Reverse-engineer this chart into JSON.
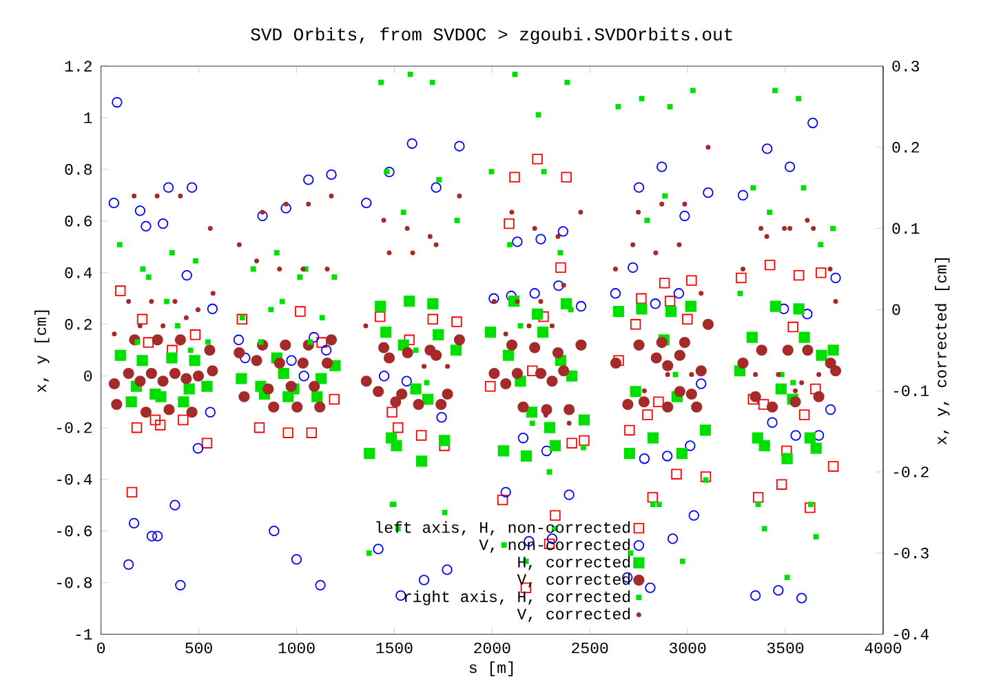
{
  "chart_data": {
    "type": "scatter",
    "title": "SVD Orbits, from SVDOC > zgoubi.SVDOrbits.out",
    "xlabel": "s [m]",
    "ylabel": "x, y [cm]",
    "y2label": "x, y, corrected [cm]",
    "xlim": [
      0,
      4000
    ],
    "xticks": [
      0,
      500,
      1000,
      1500,
      2000,
      2500,
      3000,
      3500,
      4000
    ],
    "ylim": [
      -1,
      1.2
    ],
    "yticks": [
      -1,
      -0.8,
      -0.6,
      -0.4,
      -0.2,
      0,
      0.2,
      0.4,
      0.6,
      0.8,
      1,
      1.2
    ],
    "y2lim": [
      -0.4,
      0.3
    ],
    "y2ticks": [
      -0.4,
      -0.3,
      -0.2,
      -0.1,
      0,
      0.1,
      0.2,
      0.3
    ],
    "grid": false,
    "legend": "bottom",
    "series": [
      {
        "name": "left axis, H, non-corrected",
        "color": "#ff0000",
        "marker": "square",
        "x": [
          99,
          211,
          482,
          721,
          1019,
          1427,
          242,
          364,
          1129,
          2232,
          2115,
          2380,
          2087,
          2351,
          2882,
          3020,
          2763,
          2910,
          2999,
          2734,
          1697,
          1819,
          1577,
          2263,
          3421,
          3274,
          3569,
          3682,
          3539,
          158,
          183,
          277,
          303,
          420,
          542,
          810,
          957,
          1077,
          1193,
          1488,
          1638,
          1756,
          1519,
          2054,
          2323,
          2293,
          2173,
          2408,
          2471,
          2703,
          2795,
          2851,
          2943,
          2821,
          1991,
          2206,
          2647,
          3335,
          3389,
          3654,
          3597,
          3506,
          3745,
          3093,
          3481,
          3361,
          3626
        ],
        "values": [
          0.33,
          0.22,
          0.16,
          0.22,
          0.25,
          0.23,
          0.13,
          0.1,
          0.13,
          0.84,
          0.77,
          0.77,
          0.59,
          0.42,
          0.36,
          0.37,
          0.3,
          0.29,
          0.22,
          0.2,
          0.22,
          0.21,
          0.14,
          0.23,
          0.43,
          0.38,
          0.39,
          0.4,
          0.19,
          -0.45,
          -0.2,
          -0.17,
          -0.19,
          -0.17,
          -0.26,
          -0.2,
          -0.22,
          -0.22,
          -0.09,
          -0.14,
          -0.23,
          -0.27,
          -0.2,
          -0.48,
          -0.54,
          -0.65,
          -0.82,
          -0.26,
          -0.25,
          -0.21,
          -0.15,
          -0.1,
          -0.38,
          -0.47,
          -0.04,
          0.02,
          0.06,
          -0.09,
          -0.11,
          -0.05,
          -0.15,
          -0.29,
          -0.35,
          -0.39,
          -0.42,
          -0.47,
          -0.51
        ]
      },
      {
        "name": "V, non-corrected",
        "color": "#0000ff",
        "marker": "circle",
        "x": [
          82,
          66,
          200,
          230,
          317,
          345,
          465,
          439,
          570,
          704,
          826,
          946,
          1061,
          1178,
          1357,
          1474,
          1089,
          1591,
          1833,
          1714,
          2868,
          2751,
          2985,
          2363,
          2129,
          2249,
          2340,
          2720,
          2631,
          2218,
          2098,
          2009,
          2455,
          2955,
          2835,
          3640,
          3407,
          3523,
          3105,
          3283,
          3757,
          3492,
          3612,
          559,
          496,
          378,
          169,
          260,
          289,
          141,
          406,
          885,
          1000,
          1122,
          1418,
          1448,
          1038,
          1152,
          737,
          974,
          1563,
          1742,
          2070,
          2394,
          2159,
          2279,
          2779,
          2896,
          3013,
          1770,
          1652,
          1533,
          2307,
          2189,
          2692,
          2809,
          2924,
          3032,
          3069,
          3433,
          3553,
          3671,
          3731,
          3347,
          3464,
          3583
        ],
        "values": [
          1.06,
          0.67,
          0.64,
          0.58,
          0.59,
          0.73,
          0.73,
          0.39,
          0.26,
          0.14,
          0.62,
          0.65,
          0.76,
          0.78,
          0.67,
          0.79,
          0.15,
          0.9,
          0.89,
          0.73,
          0.81,
          0.73,
          0.62,
          0.56,
          0.52,
          0.53,
          0.35,
          0.42,
          0.32,
          0.32,
          0.31,
          0.3,
          0.27,
          0.32,
          0.28,
          0.98,
          0.88,
          0.81,
          0.71,
          0.7,
          0.38,
          0.26,
          0.24,
          -0.14,
          -0.28,
          -0.5,
          -0.57,
          -0.62,
          -0.62,
          -0.73,
          -0.81,
          -0.6,
          -0.71,
          -0.81,
          -0.67,
          0.0,
          0.0,
          0.1,
          0.07,
          0.06,
          -0.02,
          -0.16,
          -0.45,
          -0.46,
          -0.24,
          -0.29,
          -0.32,
          -0.31,
          -0.27,
          -0.75,
          -0.79,
          -0.85,
          -0.63,
          -0.64,
          -0.78,
          -0.82,
          -0.63,
          -0.54,
          -0.03,
          -0.18,
          -0.23,
          -0.23,
          -0.13,
          -0.85,
          -0.83,
          -0.86
        ]
      },
      {
        "name": "H, corrected",
        "color": "#00e000",
        "marker": "square",
        "x": [
          1429,
          1457,
          1577,
          1697,
          2112,
          2380,
          2232,
          2647,
          2765,
          2915,
          3016,
          1725,
          1992,
          2260,
          2879,
          1547,
          3450,
          3569,
          3330,
          3597,
          3745,
          99,
          211,
          362,
          479,
          181,
          277,
          155,
          422,
          451,
          542,
          306,
          718,
          817,
          934,
          899,
          986,
          1126,
          1197,
          957,
          1105,
          1373,
          1485,
          836,
          1610,
          1671,
          1756,
          1640,
          1511,
          2058,
          2175,
          2323,
          2295,
          2471,
          2203,
          2084,
          2408,
          2351,
          2734,
          2946,
          2823,
          2703,
          2971,
          1816,
          2145,
          3091,
          3358,
          3393,
          3626,
          3657,
          3509,
          3478,
          3537,
          3267,
          3685
        ],
        "values": [
          0.27,
          0.17,
          0.29,
          0.28,
          0.29,
          0.28,
          0.24,
          0.25,
          0.26,
          0.25,
          0.27,
          0.16,
          0.17,
          0.17,
          0.14,
          0.12,
          0.27,
          0.26,
          0.15,
          0.15,
          0.1,
          0.08,
          0.06,
          0.07,
          0.06,
          -0.04,
          -0.07,
          -0.1,
          -0.1,
          -0.05,
          -0.04,
          -0.08,
          -0.01,
          -0.04,
          0.01,
          0.07,
          -0.05,
          -0.01,
          0.04,
          -0.08,
          -0.08,
          -0.3,
          -0.24,
          -0.07,
          -0.05,
          -0.09,
          -0.25,
          -0.33,
          -0.27,
          -0.29,
          -0.31,
          -0.27,
          -0.2,
          -0.17,
          -0.14,
          0.08,
          0.0,
          0.06,
          -0.06,
          -0.08,
          -0.24,
          -0.3,
          -0.3,
          0.1,
          -0.02,
          -0.21,
          -0.24,
          -0.27,
          -0.24,
          -0.28,
          -0.32,
          -0.05,
          -0.09,
          0.02,
          0.08
        ]
      },
      {
        "name": "V, corrected",
        "color": "#a52a2a",
        "marker": "circle",
        "x": [
          172,
          289,
          406,
          943,
          1061,
          1178,
          826,
          1446,
          556,
          1833,
          2101,
          2218,
          2455,
          2751,
          2868,
          2985,
          1683,
          3105,
          68,
          141,
          200,
          258,
          317,
          378,
          436,
          498,
          570,
          80,
          230,
          348,
          465,
          707,
          796,
          913,
          1033,
          1157,
          732,
          855,
          972,
          1091,
          883,
          1003,
          1119,
          1357,
          1418,
          1474,
          1507,
          1568,
          1714,
          1538,
          1624,
          1772,
          1739,
          2011,
          2070,
          2129,
          2249,
          2307,
          2366,
          2159,
          2279,
          2394,
          2337,
          2633,
          2694,
          2777,
          2840,
          2898,
          2960,
          2898,
          2960,
          3069,
          3020,
          3046,
          3283,
          3347,
          3433,
          3551,
          3671,
          3731,
          3757,
          3614,
          3513,
          3379
        ],
        "values": [
          0.14,
          0.14,
          0.14,
          0.12,
          0.12,
          0.14,
          0.12,
          0.11,
          0.1,
          0.14,
          0.12,
          0.11,
          0.12,
          0.12,
          0.13,
          0.13,
          0.1,
          0.2,
          -0.03,
          0.01,
          -0.02,
          0.01,
          -0.02,
          0.01,
          -0.01,
          0.0,
          0.02,
          -0.11,
          -0.14,
          -0.13,
          -0.14,
          0.09,
          0.06,
          0.05,
          0.05,
          0.05,
          -0.08,
          -0.05,
          -0.04,
          -0.04,
          -0.12,
          -0.12,
          -0.12,
          -0.02,
          -0.06,
          0.07,
          -0.1,
          0.09,
          0.08,
          -0.07,
          -0.11,
          -0.07,
          -0.11,
          0.01,
          -0.03,
          0.01,
          0.01,
          -0.02,
          0.02,
          -0.12,
          -0.13,
          -0.13,
          0.09,
          0.05,
          -0.11,
          -0.1,
          0.07,
          0.04,
          0.08,
          -0.12,
          -0.06,
          0.02,
          -0.07,
          -0.12,
          0.05,
          -0.08,
          -0.12,
          -0.1,
          -0.08,
          0.05,
          0.02,
          0.1,
          0.1,
          0.1
        ]
      },
      {
        "name": "right axis, H, corrected",
        "color": "#00e000",
        "marker": "square",
        "axis": "y2",
        "x": [
          1432,
          1462,
          96,
          364,
          484,
          214,
          244,
          899,
          779,
          1017,
          1047,
          1193,
          336,
          927,
          869,
          1131,
          392,
          723,
          186,
          458,
          547,
          817,
          1070,
          1582,
          1695,
          2117,
          2384,
          2237,
          2645,
          2765,
          2910,
          3027,
          1728,
          1997,
          2265,
          2884,
          1547,
          2793,
          1821,
          2091,
          2349,
          2145,
          2403,
          3447,
          3567,
          3335,
          3593,
          3743,
          3419,
          3680,
          3269,
          1490,
          1371,
          1666,
          1758,
          1497,
          1519,
          2061,
          2173,
          2319,
          2293,
          2467,
          2206,
          2708,
          2823,
          2854,
          2974,
          2938,
          1610,
          3093,
          3361,
          3393,
          3630,
          3657,
          3509,
          3539,
          3481
        ],
        "values": [
          0.28,
          0.17,
          0.08,
          0.07,
          0.06,
          0.05,
          0.04,
          0.07,
          0.05,
          0.04,
          0.05,
          0.04,
          0.01,
          0.01,
          0.0,
          -0.01,
          -0.02,
          -0.01,
          -0.04,
          -0.05,
          -0.04,
          -0.04,
          -0.04,
          0.29,
          0.28,
          0.29,
          0.28,
          0.24,
          0.25,
          0.26,
          0.25,
          0.27,
          0.16,
          0.17,
          0.17,
          0.14,
          0.12,
          0.11,
          0.11,
          0.08,
          0.07,
          -0.02,
          0.0,
          0.27,
          0.26,
          0.15,
          0.15,
          0.1,
          0.12,
          0.08,
          0.02,
          -0.24,
          -0.3,
          -0.09,
          -0.25,
          -0.24,
          -0.27,
          -0.29,
          -0.31,
          -0.27,
          -0.2,
          -0.17,
          -0.14,
          -0.3,
          -0.24,
          -0.24,
          -0.31,
          -0.08,
          -0.05,
          -0.21,
          -0.24,
          -0.27,
          -0.24,
          -0.28,
          -0.33,
          -0.09,
          -0.08
        ]
      },
      {
        "name": "V, corrected",
        "color": "#a52a2a",
        "marker": "circle",
        "axis": "y2",
        "x": [
          169,
          287,
          406,
          946,
          1061,
          1178,
          826,
          1446,
          559,
          707,
          796,
          913,
          1033,
          1157,
          1474,
          141,
          258,
          378,
          496,
          573,
          68,
          200,
          317,
          436,
          1354,
          1833,
          2101,
          2218,
          2453,
          2748,
          2868,
          2985,
          1566,
          1683,
          1714,
          1594,
          2337,
          2631,
          2720,
          2837,
          2957,
          2011,
          2129,
          2249,
          2366,
          2307,
          2189,
          2070,
          3105,
          3375,
          3405,
          3495,
          3523,
          3612,
          3643,
          3283,
          3729,
          3757,
          3069,
          3347,
          3464,
          3583,
          3671,
          3551,
          3020,
          1652,
          1772,
          2898,
          2779,
          2275,
          2394
        ],
        "values": [
          0.14,
          0.14,
          0.14,
          0.13,
          0.13,
          0.14,
          0.12,
          0.11,
          0.1,
          0.08,
          0.06,
          0.05,
          0.05,
          0.05,
          0.07,
          0.01,
          0.01,
          0.01,
          0.0,
          0.02,
          -0.03,
          -0.02,
          -0.02,
          -0.01,
          -0.02,
          0.14,
          0.12,
          0.1,
          0.12,
          0.12,
          0.13,
          0.13,
          0.1,
          0.09,
          0.08,
          0.07,
          0.09,
          0.05,
          0.08,
          0.07,
          0.08,
          0.01,
          0.01,
          0.01,
          0.03,
          -0.02,
          -0.02,
          -0.03,
          0.2,
          0.1,
          0.09,
          0.1,
          0.1,
          0.11,
          0.1,
          0.05,
          0.05,
          0.01,
          0.02,
          -0.08,
          -0.08,
          -0.09,
          -0.08,
          -0.1,
          -0.08,
          -0.07,
          -0.07,
          -0.08,
          -0.1,
          -0.13,
          -0.14
        ]
      }
    ]
  }
}
